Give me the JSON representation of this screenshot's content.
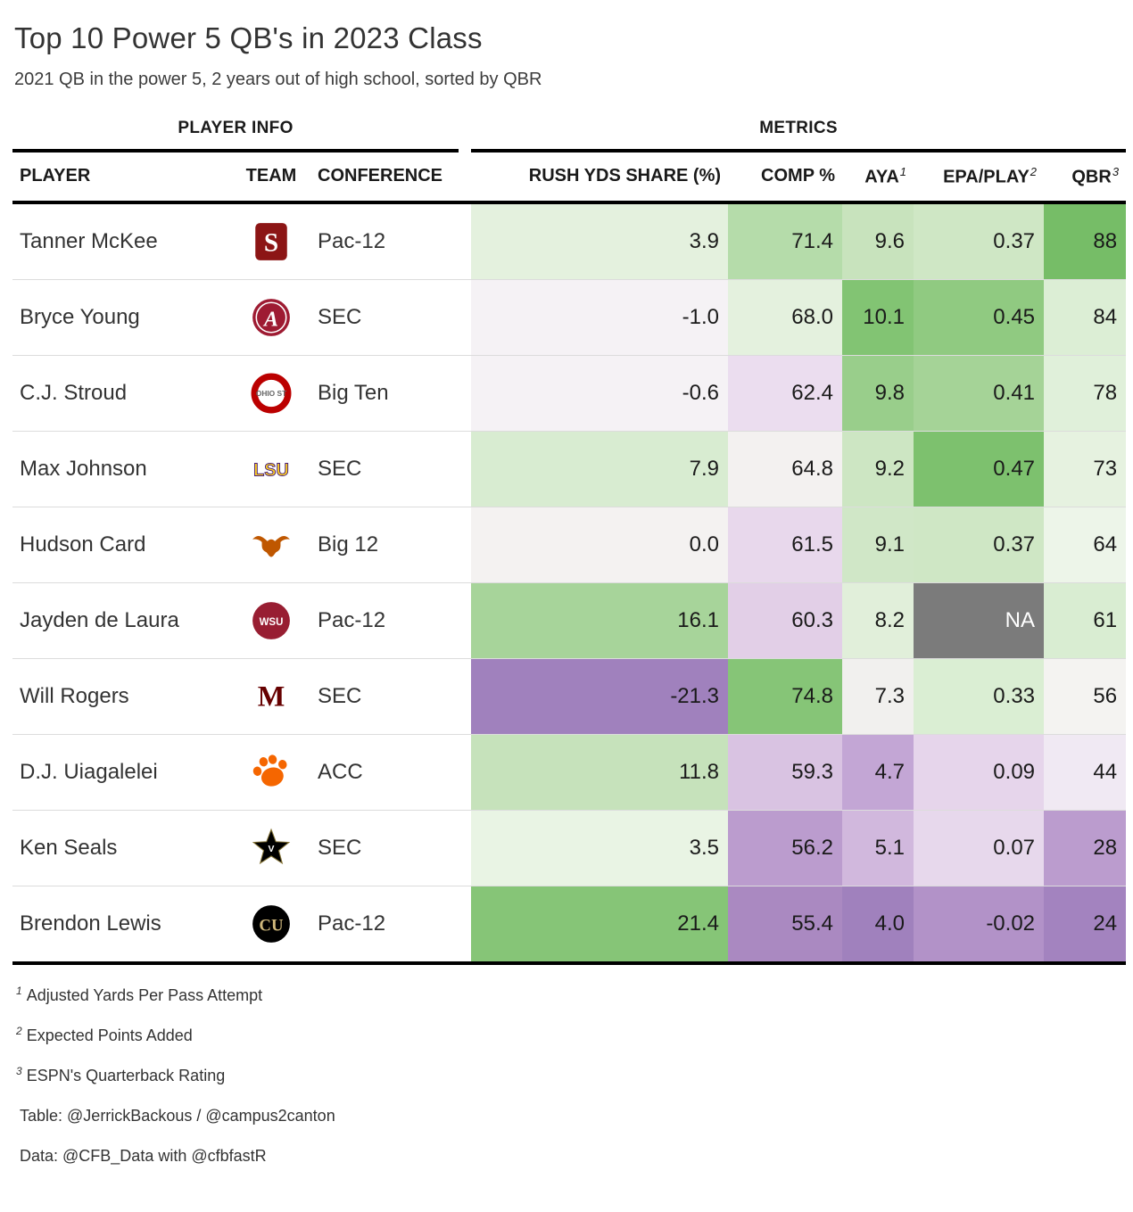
{
  "spanners": {
    "player_info": "PLAYER INFO",
    "metrics": "METRICS"
  },
  "columns": {
    "player": "PLAYER",
    "team": "TEAM",
    "conference": "CONFERENCE",
    "rush": "RUSH YDS SHARE (%)",
    "comp": "COMP %",
    "aya": "AYA",
    "aya_sup": "1",
    "epa": "EPA/PLAY",
    "epa_sup": "2",
    "qbr": "QBR",
    "qbr_sup": "3"
  },
  "chart_data": {
    "type": "table",
    "title": "Top 10 Power 5 QB's in 2023 Class",
    "subtitle": "2021 QB in the power 5, 2 years out of high school, sorted by QBR",
    "column_keys": [
      "player",
      "team",
      "conference",
      "rush_yds_share_pct",
      "comp_pct",
      "aya",
      "epa_play",
      "qbr"
    ],
    "heatmap_palette": {
      "positive": "#76bd67",
      "negative": "#a081bd",
      "neutral": "#f4f2f1",
      "na": "#7b7b7b"
    },
    "rows": [
      {
        "player": "Tanner McKee",
        "team": "Stanford",
        "logo_key": "stanford",
        "conference": "Pac-12",
        "metrics": [
          {
            "col": "rush_yds_share_pct",
            "v": "3.9",
            "bg": "#e4f1de"
          },
          {
            "col": "comp_pct",
            "v": "71.4",
            "bg": "#b5dcaa"
          },
          {
            "col": "aya",
            "v": "9.6",
            "bg": "#c8e3bd"
          },
          {
            "col": "epa_play",
            "v": "0.37",
            "bg": "#cfe7c5"
          },
          {
            "col": "qbr",
            "v": "88",
            "bg": "#76bd67"
          }
        ]
      },
      {
        "player": "Bryce Young",
        "team": "Alabama",
        "logo_key": "alabama",
        "conference": "SEC",
        "metrics": [
          {
            "col": "rush_yds_share_pct",
            "v": "-1.0",
            "bg": "#f5f2f5"
          },
          {
            "col": "comp_pct",
            "v": "68.0",
            "bg": "#e4f1de"
          },
          {
            "col": "aya",
            "v": "10.1",
            "bg": "#82c473"
          },
          {
            "col": "epa_play",
            "v": "0.45",
            "bg": "#90ca81"
          },
          {
            "col": "qbr",
            "v": "84",
            "bg": "#dceed5"
          }
        ]
      },
      {
        "player": "C.J. Stroud",
        "team": "Ohio State",
        "logo_key": "ohio-state",
        "conference": "Big Ten",
        "metrics": [
          {
            "col": "rush_yds_share_pct",
            "v": "-0.6",
            "bg": "#f5f2f5"
          },
          {
            "col": "comp_pct",
            "v": "62.4",
            "bg": "#ebddef"
          },
          {
            "col": "aya",
            "v": "9.8",
            "bg": "#99ce8b"
          },
          {
            "col": "epa_play",
            "v": "0.41",
            "bg": "#a5d397"
          },
          {
            "col": "qbr",
            "v": "78",
            "bg": "#e0f0da"
          }
        ]
      },
      {
        "player": "Max Johnson",
        "team": "LSU",
        "logo_key": "lsu",
        "conference": "SEC",
        "metrics": [
          {
            "col": "rush_yds_share_pct",
            "v": "7.9",
            "bg": "#d8ecd1"
          },
          {
            "col": "comp_pct",
            "v": "64.8",
            "bg": "#f3f1f0"
          },
          {
            "col": "aya",
            "v": "9.2",
            "bg": "#cde6c3"
          },
          {
            "col": "epa_play",
            "v": "0.47",
            "bg": "#7dc16e"
          },
          {
            "col": "qbr",
            "v": "73",
            "bg": "#e6f2e0"
          }
        ]
      },
      {
        "player": "Hudson Card",
        "team": "Texas",
        "logo_key": "texas",
        "conference": "Big 12",
        "metrics": [
          {
            "col": "rush_yds_share_pct",
            "v": "0.0",
            "bg": "#f4f2f1"
          },
          {
            "col": "comp_pct",
            "v": "61.5",
            "bg": "#e8d8ec"
          },
          {
            "col": "aya",
            "v": "9.1",
            "bg": "#d0e7c7"
          },
          {
            "col": "epa_play",
            "v": "0.37",
            "bg": "#cfe7c5"
          },
          {
            "col": "qbr",
            "v": "64",
            "bg": "#edf5e9"
          }
        ]
      },
      {
        "player": "Jayden de Laura",
        "team": "Washington State",
        "logo_key": "washington-state",
        "conference": "Pac-12",
        "metrics": [
          {
            "col": "rush_yds_share_pct",
            "v": "16.1",
            "bg": "#a7d49a"
          },
          {
            "col": "comp_pct",
            "v": "60.3",
            "bg": "#e2cfe7"
          },
          {
            "col": "aya",
            "v": "8.2",
            "bg": "#e1efda"
          },
          {
            "col": "epa_play",
            "v": "NA",
            "bg": "#7b7b7b",
            "fg": "#ffffff"
          },
          {
            "col": "qbr",
            "v": "61",
            "bg": "#d9edd2"
          }
        ]
      },
      {
        "player": "Will Rogers",
        "team": "Mississippi State",
        "logo_key": "mississippi-state",
        "conference": "SEC",
        "metrics": [
          {
            "col": "rush_yds_share_pct",
            "v": "-21.3",
            "bg": "#a081bd"
          },
          {
            "col": "comp_pct",
            "v": "74.8",
            "bg": "#86c577"
          },
          {
            "col": "aya",
            "v": "7.3",
            "bg": "#f1f0ee"
          },
          {
            "col": "epa_play",
            "v": "0.33",
            "bg": "#daeed3"
          },
          {
            "col": "qbr",
            "v": "56",
            "bg": "#f4f3f1"
          }
        ]
      },
      {
        "player": "D.J. Uiagalelei",
        "team": "Clemson",
        "logo_key": "clemson",
        "conference": "ACC",
        "metrics": [
          {
            "col": "rush_yds_share_pct",
            "v": "11.8",
            "bg": "#c6e2bb"
          },
          {
            "col": "comp_pct",
            "v": "59.3",
            "bg": "#d9c3e2"
          },
          {
            "col": "aya",
            "v": "4.7",
            "bg": "#c3a6d5"
          },
          {
            "col": "epa_play",
            "v": "0.09",
            "bg": "#e6d5eb"
          },
          {
            "col": "qbr",
            "v": "44",
            "bg": "#f0e9f3"
          }
        ]
      },
      {
        "player": "Ken Seals",
        "team": "Vanderbilt",
        "logo_key": "vanderbilt",
        "conference": "SEC",
        "metrics": [
          {
            "col": "rush_yds_share_pct",
            "v": "3.5",
            "bg": "#e9f4e4"
          },
          {
            "col": "comp_pct",
            "v": "56.2",
            "bg": "#bb9cce"
          },
          {
            "col": "aya",
            "v": "5.1",
            "bg": "#d1b8dd"
          },
          {
            "col": "epa_play",
            "v": "0.07",
            "bg": "#e7d8ec"
          },
          {
            "col": "qbr",
            "v": "28",
            "bg": "#bb9cce"
          }
        ]
      },
      {
        "player": "Brendon Lewis",
        "team": "Colorado",
        "logo_key": "colorado",
        "conference": "Pac-12",
        "metrics": [
          {
            "col": "rush_yds_share_pct",
            "v": "21.4",
            "bg": "#86c577"
          },
          {
            "col": "comp_pct",
            "v": "55.4",
            "bg": "#aa89c1"
          },
          {
            "col": "aya",
            "v": "4.0",
            "bg": "#a081bd"
          },
          {
            "col": "epa_play",
            "v": "-0.02",
            "bg": "#b292c8"
          },
          {
            "col": "qbr",
            "v": "24",
            "bg": "#a383bf"
          }
        ]
      }
    ]
  },
  "footnotes": [
    {
      "sup": "1",
      "text": "Adjusted Yards Per Pass Attempt"
    },
    {
      "sup": "2",
      "text": "Expected Points Added"
    },
    {
      "sup": "3",
      "text": "ESPN's Quarterback Rating"
    }
  ],
  "credits": [
    "Table: @JerrickBackous / @campus2canton",
    "Data: @CFB_Data with @cfbfastR"
  ]
}
